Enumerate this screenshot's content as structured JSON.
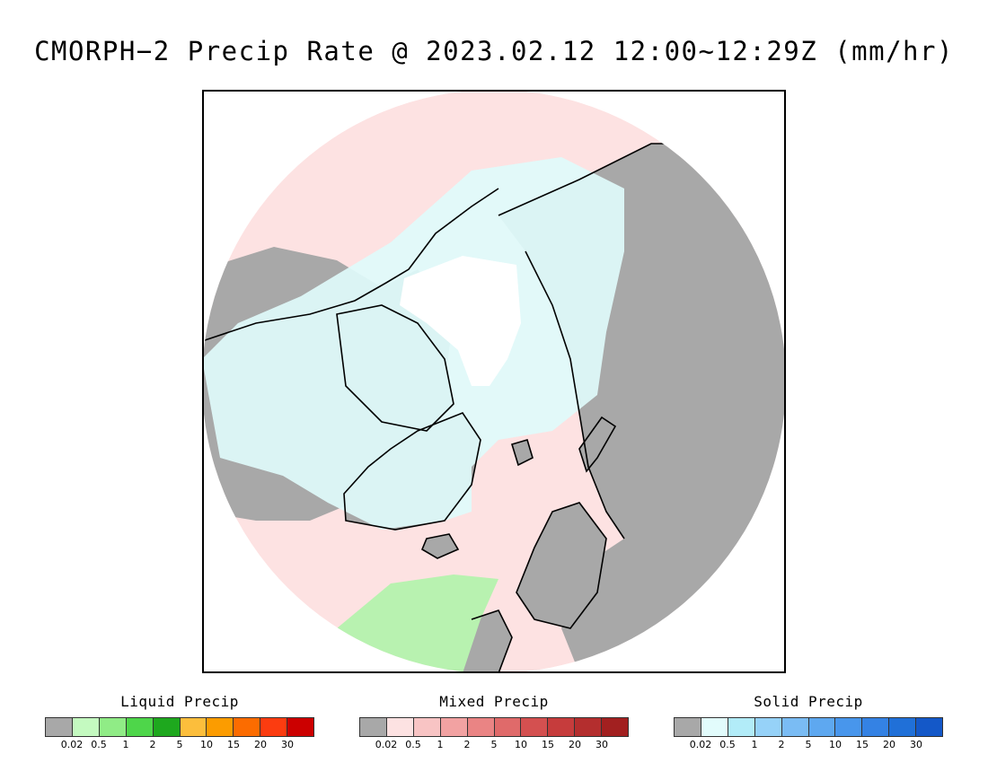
{
  "title": "CMORPH−2 Precip Rate @ 2023.02.12 12:00~12:29Z (mm/hr)",
  "colors": {
    "land": "#a8a8a8",
    "no_precip_ocean": "#ffffff",
    "mixed_light": "#fde2e2",
    "solid_light": "#e0fbfb",
    "liquid_light": "#b8f2b0",
    "coast": "#000000"
  },
  "legends": [
    {
      "title": "Liquid Precip",
      "colors": [
        "#a8a8a8",
        "#c4fac0",
        "#90ec86",
        "#4ed64a",
        "#1ea81e",
        "#fcbe3c",
        "#fc9c00",
        "#fc6c00",
        "#fc3c10",
        "#cc0000"
      ],
      "ticks": [
        "0.02",
        "0.5",
        "1",
        "2",
        "5",
        "10",
        "15",
        "20",
        "30"
      ]
    },
    {
      "title": "Mixed Precip",
      "colors": [
        "#a8a8a8",
        "#fde2e2",
        "#f8c4c4",
        "#f2a2a2",
        "#ea8484",
        "#e06a6a",
        "#d45050",
        "#c63c3c",
        "#b42e2e",
        "#a22020"
      ],
      "ticks": [
        "0.02",
        "0.5",
        "1",
        "2",
        "5",
        "10",
        "15",
        "20",
        "30"
      ]
    },
    {
      "title": "Solid Precip",
      "colors": [
        "#a8a8a8",
        "#e2fcfc",
        "#b2ecf8",
        "#96d2f8",
        "#7abcf4",
        "#5ea8f0",
        "#4896ec",
        "#3482e4",
        "#2070d8",
        "#1458c8"
      ],
      "ticks": [
        "0.02",
        "0.5",
        "1",
        "2",
        "5",
        "10",
        "15",
        "20",
        "30"
      ]
    }
  ]
}
